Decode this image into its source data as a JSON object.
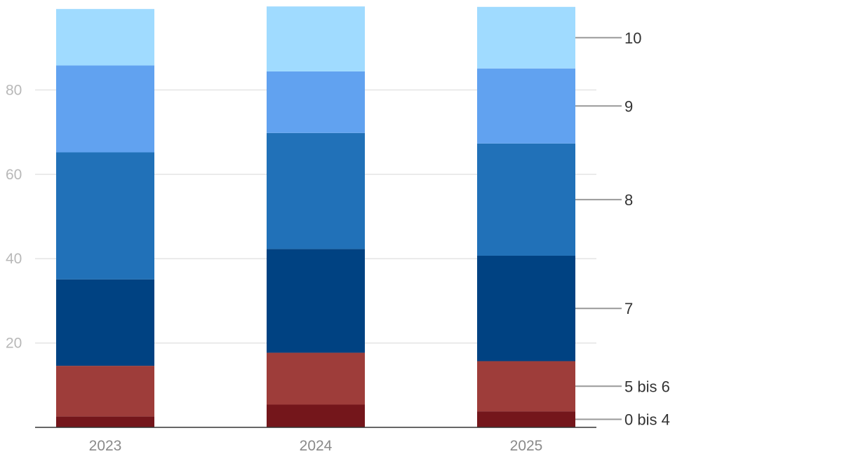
{
  "chart_data": {
    "type": "bar",
    "stacked": true,
    "categories": [
      "2023",
      "2024",
      "2025"
    ],
    "ylim": [
      0,
      100
    ],
    "yticks": [
      20,
      40,
      60,
      80
    ],
    "grid": true,
    "legend": "right, as labels pointing to the 2025 bar segments",
    "series": [
      {
        "name": "0 bis 4",
        "color": "#74161b",
        "values": [
          2.6,
          5.4,
          3.8
        ]
      },
      {
        "name": "5 bis 6",
        "color": "#9e3d3a",
        "values": [
          12.0,
          12.3,
          11.9
        ]
      },
      {
        "name": "7",
        "color": "#004282",
        "values": [
          20.5,
          24.6,
          25.0
        ]
      },
      {
        "name": "8",
        "color": "#2171b8",
        "values": [
          30.1,
          27.5,
          26.6
        ]
      },
      {
        "name": "9",
        "color": "#61a2f0",
        "values": [
          20.6,
          14.6,
          17.8
        ]
      },
      {
        "name": "10",
        "color": "#a0dbff",
        "values": [
          13.4,
          15.4,
          14.6
        ]
      }
    ]
  }
}
